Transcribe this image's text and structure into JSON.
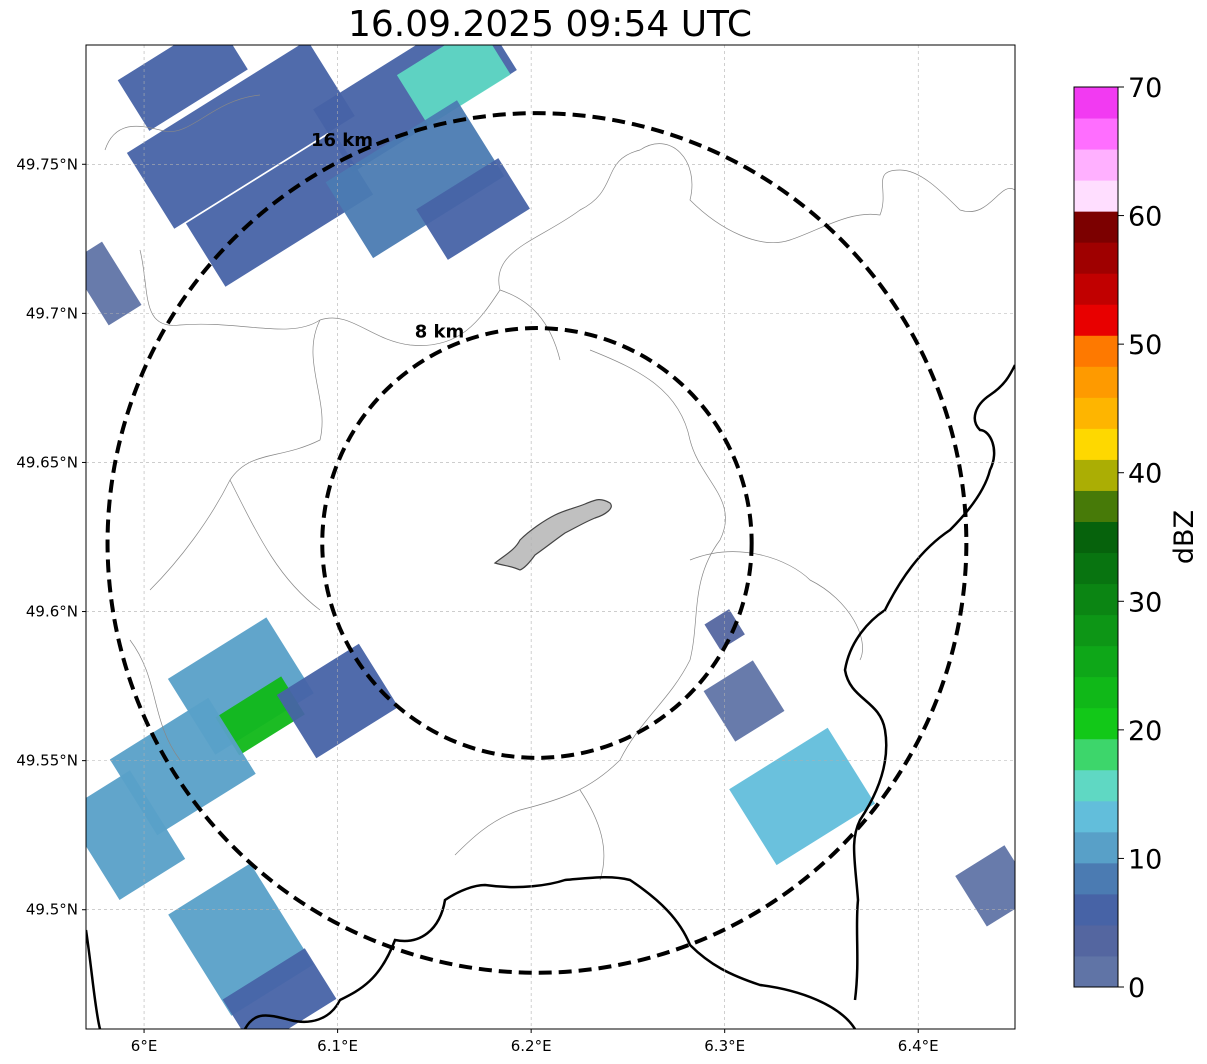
{
  "title": "16.09.2025 09:54 UTC",
  "map": {
    "lon_range": [
      5.97,
      6.45
    ],
    "lat_range": [
      49.46,
      49.79
    ],
    "lon_ticks": [
      {
        "value": 6.0,
        "label": "6°E"
      },
      {
        "value": 6.1,
        "label": "6.1°E"
      },
      {
        "value": 6.2,
        "label": "6.2°E"
      },
      {
        "value": 6.3,
        "label": "6.3°E"
      },
      {
        "value": 6.4,
        "label": "6.4°E"
      }
    ],
    "lat_ticks": [
      {
        "value": 49.5,
        "label": "49.5°N"
      },
      {
        "value": 49.55,
        "label": "49.55°N"
      },
      {
        "value": 49.6,
        "label": "49.6°N"
      },
      {
        "value": 49.65,
        "label": "49.65°N"
      },
      {
        "value": 49.7,
        "label": "49.7°N"
      },
      {
        "value": 49.75,
        "label": "49.75°N"
      }
    ],
    "gridlines": true,
    "center": {
      "lon": 6.203,
      "lat": 49.623
    },
    "range_rings": [
      {
        "radius_km": 8,
        "label": "8 km"
      },
      {
        "radius_km": 16,
        "label": "16 km"
      }
    ],
    "city_area_color": "#c0c0c0",
    "echoes": [
      {
        "lon": 6.05,
        "lat": 49.76,
        "dlon": 0.11,
        "dlat": 0.03,
        "dbz": 6
      },
      {
        "lon": 6.14,
        "lat": 49.775,
        "dlon": 0.1,
        "dlat": 0.025,
        "dbz": 7
      },
      {
        "lon": 6.16,
        "lat": 49.78,
        "dlon": 0.05,
        "dlat": 0.02,
        "dbz": 15
      },
      {
        "lon": 6.07,
        "lat": 49.735,
        "dlon": 0.09,
        "dlat": 0.025,
        "dbz": 5
      },
      {
        "lon": 6.14,
        "lat": 49.745,
        "dlon": 0.08,
        "dlat": 0.03,
        "dbz": 8
      },
      {
        "lon": 6.17,
        "lat": 49.735,
        "dlon": 0.05,
        "dlat": 0.02,
        "dbz": 5
      },
      {
        "lon": 6.02,
        "lat": 49.78,
        "dlon": 0.06,
        "dlat": 0.02,
        "dbz": 6
      },
      {
        "lon": 5.98,
        "lat": 49.71,
        "dlon": 0.02,
        "dlat": 0.025,
        "dbz": 2
      },
      {
        "lon": 6.05,
        "lat": 49.575,
        "dlon": 0.06,
        "dlat": 0.03,
        "dbz": 12
      },
      {
        "lon": 6.06,
        "lat": 49.565,
        "dlon": 0.04,
        "dlat": 0.015,
        "dbz": 24
      },
      {
        "lon": 6.1,
        "lat": 49.57,
        "dlon": 0.05,
        "dlat": 0.025,
        "dbz": 6
      },
      {
        "lon": 6.02,
        "lat": 49.548,
        "dlon": 0.06,
        "dlat": 0.03,
        "dbz": 10
      },
      {
        "lon": 5.99,
        "lat": 49.525,
        "dlon": 0.04,
        "dlat": 0.035,
        "dbz": 10
      },
      {
        "lon": 6.05,
        "lat": 49.49,
        "dlon": 0.05,
        "dlat": 0.04,
        "dbz": 11
      },
      {
        "lon": 6.07,
        "lat": 49.47,
        "dlon": 0.05,
        "dlat": 0.02,
        "dbz": 7
      },
      {
        "lon": 6.34,
        "lat": 49.538,
        "dlon": 0.06,
        "dlat": 0.03,
        "dbz": 13
      },
      {
        "lon": 6.31,
        "lat": 49.57,
        "dlon": 0.03,
        "dlat": 0.02,
        "dbz": 2
      },
      {
        "lon": 6.3,
        "lat": 49.594,
        "dlon": 0.015,
        "dlat": 0.01,
        "dbz": 3
      },
      {
        "lon": 6.44,
        "lat": 49.508,
        "dlon": 0.03,
        "dlat": 0.02,
        "dbz": 2
      }
    ]
  },
  "colorbar": {
    "label": "dBZ",
    "min": 0,
    "max": 70,
    "tick_values": [
      0,
      10,
      20,
      30,
      40,
      50,
      60,
      70
    ],
    "colors": [
      "#6074a6",
      "#5466a0",
      "#4763a6",
      "#4b7bb2",
      "#58a0c8",
      "#62bedb",
      "#5fd8c3",
      "#3dd66b",
      "#12c818",
      "#10b818",
      "#0ea718",
      "#0d9616",
      "#0b8513",
      "#087410",
      "#06620c",
      "#477a08",
      "#abae04",
      "#fed800",
      "#feb500",
      "#fe9a00",
      "#fe7900",
      "#e80000",
      "#c10000",
      "#9f0000",
      "#7c0000",
      "#ffdeff",
      "#ffb0ff",
      "#ff6eff",
      "#f23af2"
    ]
  }
}
